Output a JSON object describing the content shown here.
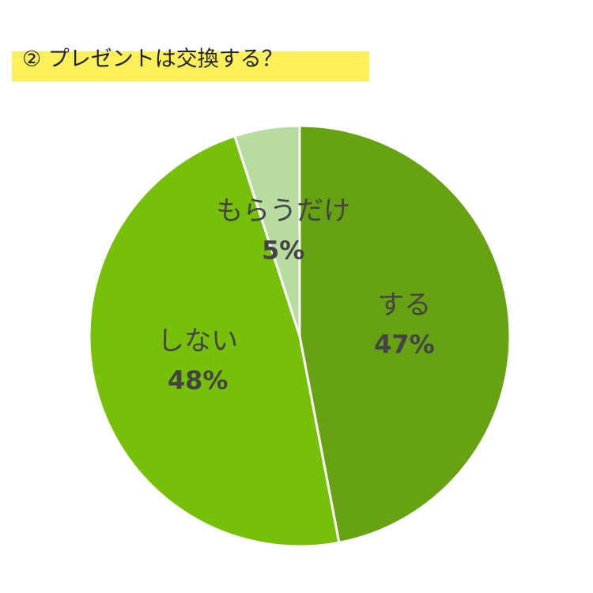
{
  "chart_data": {
    "type": "pie",
    "title": "② プレゼントは交換する？",
    "categories": [
      "する",
      "しない",
      "もらうだけ"
    ],
    "values": [
      47,
      48,
      5
    ],
    "value_labels": [
      "47%",
      "48%",
      "5%"
    ],
    "colors": [
      "#66a211",
      "#77c00a",
      "#b8dba0"
    ]
  }
}
